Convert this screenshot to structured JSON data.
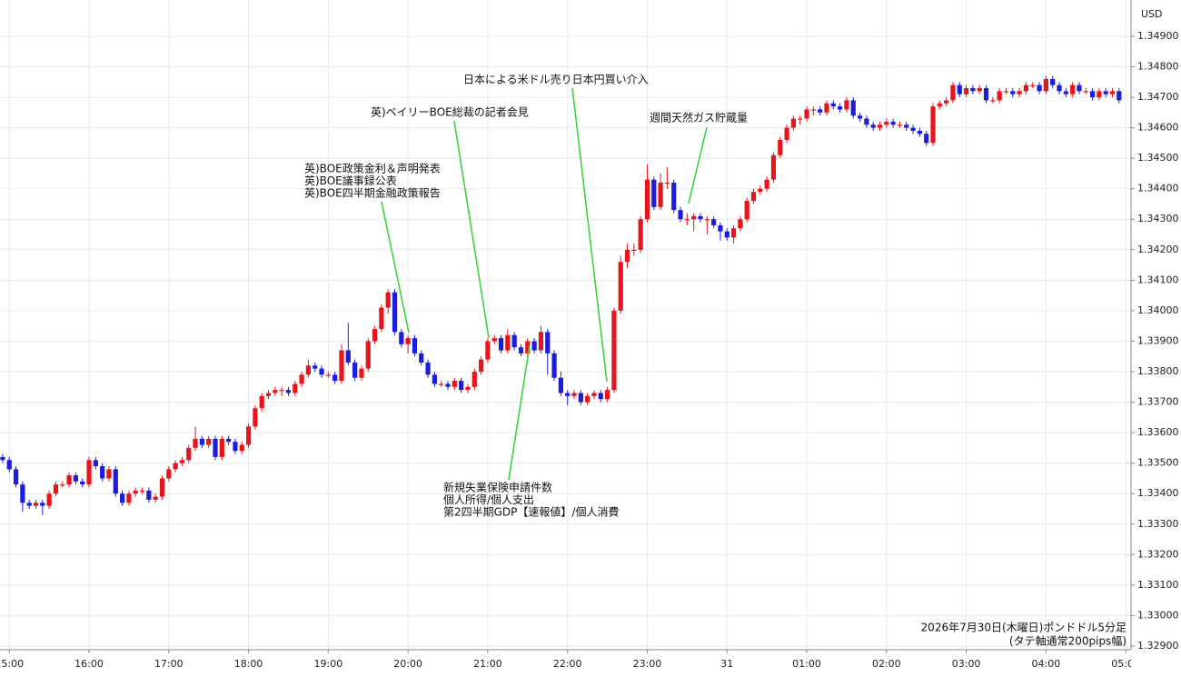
{
  "chart_data": {
    "type": "candlestick",
    "currency_label": "USD",
    "up_color": "#e8141b",
    "down_color": "#1c1ce0",
    "grid": true,
    "ylim": [
      1.32888,
      1.35019
    ],
    "yticks": [
      {
        "value": 1.349,
        "label": "1.34900"
      },
      {
        "value": 1.348,
        "label": "1.34800"
      },
      {
        "value": 1.347,
        "label": "1.34700"
      },
      {
        "value": 1.346,
        "label": "1.34600"
      },
      {
        "value": 1.345,
        "label": "1.34500"
      },
      {
        "value": 1.344,
        "label": "1.34400"
      },
      {
        "value": 1.343,
        "label": "1.34300"
      },
      {
        "value": 1.342,
        "label": "1.34200"
      },
      {
        "value": 1.341,
        "label": "1.34100"
      },
      {
        "value": 1.34,
        "label": "1.34000"
      },
      {
        "value": 1.339,
        "label": "1.33900"
      },
      {
        "value": 1.338,
        "label": "1.33800"
      },
      {
        "value": 1.337,
        "label": "1.33700"
      },
      {
        "value": 1.336,
        "label": "1.33600"
      },
      {
        "value": 1.335,
        "label": "1.33500"
      },
      {
        "value": 1.334,
        "label": "1.33400"
      },
      {
        "value": 1.333,
        "label": "1.33300"
      },
      {
        "value": 1.332,
        "label": "1.33200"
      },
      {
        "value": 1.331,
        "label": "1.33100"
      },
      {
        "value": 1.33,
        "label": "1.33000"
      },
      {
        "value": 1.329,
        "label": "1.32900"
      }
    ],
    "xlim": [
      -7,
      844
    ],
    "xticks": [
      {
        "value": 0,
        "label": "15:00"
      },
      {
        "value": 60,
        "label": "16:00"
      },
      {
        "value": 120,
        "label": "17:00"
      },
      {
        "value": 180,
        "label": "18:00"
      },
      {
        "value": 240,
        "label": "19:00"
      },
      {
        "value": 300,
        "label": "20:00"
      },
      {
        "value": 360,
        "label": "21:00"
      },
      {
        "value": 420,
        "label": "22:00"
      },
      {
        "value": 480,
        "label": "23:00"
      },
      {
        "value": 540,
        "label": "31"
      },
      {
        "value": 600,
        "label": "01:00"
      },
      {
        "value": 660,
        "label": "02:00"
      },
      {
        "value": 720,
        "label": "03:00"
      },
      {
        "value": 780,
        "label": "04:00"
      },
      {
        "value": 840,
        "label": "05:00"
      }
    ],
    "x": [
      -5,
      0,
      5,
      10,
      15,
      20,
      25,
      30,
      35,
      40,
      45,
      50,
      55,
      60,
      65,
      70,
      75,
      80,
      85,
      90,
      95,
      100,
      105,
      110,
      115,
      120,
      125,
      130,
      135,
      140,
      145,
      150,
      155,
      160,
      165,
      170,
      175,
      180,
      185,
      190,
      195,
      200,
      205,
      210,
      215,
      220,
      225,
      230,
      235,
      240,
      245,
      250,
      255,
      260,
      265,
      270,
      275,
      280,
      285,
      290,
      295,
      300,
      305,
      310,
      315,
      320,
      325,
      330,
      335,
      340,
      345,
      350,
      355,
      360,
      365,
      370,
      375,
      380,
      385,
      390,
      395,
      400,
      405,
      410,
      415,
      420,
      425,
      430,
      435,
      440,
      445,
      450,
      455,
      460,
      465,
      470,
      475,
      480,
      485,
      490,
      495,
      500,
      505,
      510,
      515,
      520,
      525,
      530,
      535,
      540,
      545,
      550,
      555,
      560,
      565,
      570,
      575,
      580,
      585,
      590,
      595,
      600,
      605,
      610,
      615,
      620,
      625,
      630,
      635,
      640,
      645,
      650,
      655,
      660,
      665,
      670,
      675,
      680,
      685,
      690,
      695,
      700,
      705,
      710,
      715,
      720,
      725,
      730,
      735,
      740,
      745,
      750,
      755,
      760,
      765,
      770,
      775,
      780,
      785,
      790,
      795,
      800,
      805,
      810,
      815,
      820,
      825,
      830,
      835
    ],
    "open": [
      1.3352,
      1.3351,
      1.3348,
      1.3343,
      1.3337,
      1.3336,
      1.3337,
      1.3336,
      1.334,
      1.3343,
      1.3343,
      1.3346,
      1.3344,
      1.3343,
      1.3351,
      1.3349,
      1.3345,
      1.3348,
      1.334,
      1.3337,
      1.334,
      1.3341,
      1.3341,
      1.3338,
      1.3339,
      1.3345,
      1.3348,
      1.335,
      1.3351,
      1.3355,
      1.3358,
      1.3356,
      1.3358,
      1.3352,
      1.3358,
      1.3357,
      1.3354,
      1.3356,
      1.3362,
      1.3368,
      1.3372,
      1.3373,
      1.3374,
      1.3374,
      1.3373,
      1.3376,
      1.3379,
      1.3382,
      1.3381,
      1.3379,
      1.3379,
      1.3377,
      1.3387,
      1.3383,
      1.3378,
      1.3381,
      1.339,
      1.3394,
      1.3401,
      1.3406,
      1.3393,
      1.3389,
      1.3391,
      1.3386,
      1.3383,
      1.3379,
      1.3376,
      1.3376,
      1.3375,
      1.3377,
      1.3374,
      1.3375,
      1.338,
      1.3384,
      1.339,
      1.3391,
      1.3387,
      1.3392,
      1.3388,
      1.3386,
      1.339,
      1.3387,
      1.3393,
      1.3386,
      1.3378,
      1.3373,
      1.3372,
      1.3373,
      1.337,
      1.3372,
      1.3373,
      1.3371,
      1.3374,
      1.34,
      1.3416,
      1.342,
      1.342,
      1.343,
      1.3443,
      1.3434,
      1.3442,
      1.3442,
      1.3433,
      1.343,
      1.343,
      1.3431,
      1.343,
      1.343,
      1.3428,
      1.3426,
      1.3424,
      1.3427,
      1.343,
      1.3436,
      1.3439,
      1.344,
      1.3443,
      1.3451,
      1.3456,
      1.346,
      1.3463,
      1.3463,
      1.3466,
      1.3466,
      1.3465,
      1.3468,
      1.3467,
      1.3466,
      1.3469,
      1.3464,
      1.3463,
      1.3461,
      1.346,
      1.3461,
      1.3462,
      1.3461,
      1.3461,
      1.346,
      1.3459,
      1.3458,
      1.3455,
      1.3467,
      1.3468,
      1.3469,
      1.3474,
      1.3471,
      1.3473,
      1.3472,
      1.3473,
      1.3469,
      1.3469,
      1.3472,
      1.3472,
      1.3471,
      1.3472,
      1.3474,
      1.3474,
      1.3472,
      1.3476,
      1.3474,
      1.3472,
      1.3471,
      1.3474,
      1.3472,
      1.3472,
      1.347,
      1.3472,
      1.3471,
      1.3472
    ],
    "high": [
      1.3353,
      1.3352,
      1.3349,
      1.3344,
      1.3338,
      1.3338,
      1.3338,
      1.3341,
      1.3344,
      1.3344,
      1.3347,
      1.3347,
      1.3345,
      1.3352,
      1.3352,
      1.335,
      1.3349,
      1.3349,
      1.3341,
      1.3341,
      1.3342,
      1.3342,
      1.3342,
      1.334,
      1.3346,
      1.3349,
      1.3351,
      1.3352,
      1.3356,
      1.3362,
      1.3359,
      1.3359,
      1.3359,
      1.3359,
      1.3359,
      1.3358,
      1.3357,
      1.3363,
      1.3369,
      1.3373,
      1.3374,
      1.3375,
      1.3375,
      1.3375,
      1.3377,
      1.338,
      1.3384,
      1.3383,
      1.3382,
      1.338,
      1.338,
      1.3389,
      1.3396,
      1.3384,
      1.3382,
      1.3391,
      1.3395,
      1.3402,
      1.3407,
      1.3407,
      1.3394,
      1.3392,
      1.3392,
      1.3387,
      1.3384,
      1.338,
      1.3377,
      1.3377,
      1.3378,
      1.3378,
      1.3376,
      1.3381,
      1.3385,
      1.3391,
      1.3392,
      1.3392,
      1.3394,
      1.3393,
      1.3389,
      1.3391,
      1.3391,
      1.3395,
      1.3394,
      1.3387,
      1.338,
      1.3374,
      1.3374,
      1.3374,
      1.3373,
      1.3374,
      1.3374,
      1.3375,
      1.3401,
      1.3418,
      1.3422,
      1.3422,
      1.3431,
      1.3448,
      1.3444,
      1.3445,
      1.3447,
      1.3443,
      1.3434,
      1.3432,
      1.3432,
      1.3432,
      1.3431,
      1.3431,
      1.3429,
      1.3427,
      1.3428,
      1.3431,
      1.3437,
      1.344,
      1.3441,
      1.3444,
      1.3452,
      1.3457,
      1.3461,
      1.3464,
      1.3464,
      1.3467,
      1.3467,
      1.3467,
      1.3469,
      1.3469,
      1.3468,
      1.347,
      1.347,
      1.3465,
      1.3464,
      1.3462,
      1.3462,
      1.3463,
      1.3463,
      1.3462,
      1.3462,
      1.3461,
      1.346,
      1.3459,
      1.3468,
      1.3469,
      1.347,
      1.3475,
      1.3475,
      1.3474,
      1.3474,
      1.3474,
      1.3474,
      1.347,
      1.3473,
      1.3473,
      1.3473,
      1.3473,
      1.3475,
      1.3475,
      1.3475,
      1.3477,
      1.3477,
      1.3475,
      1.3473,
      1.3475,
      1.3475,
      1.3473,
      1.3473,
      1.3473,
      1.3473,
      1.3473,
      1.3473
    ],
    "low": [
      1.335,
      1.3347,
      1.3342,
      1.3334,
      1.3335,
      1.3335,
      1.3333,
      1.3335,
      1.3339,
      1.3342,
      1.3342,
      1.3343,
      1.3342,
      1.3342,
      1.3348,
      1.3344,
      1.3344,
      1.3339,
      1.3336,
      1.3336,
      1.3339,
      1.334,
      1.3337,
      1.3337,
      1.3338,
      1.3344,
      1.3347,
      1.3349,
      1.335,
      1.3354,
      1.3355,
      1.3355,
      1.3351,
      1.3351,
      1.3356,
      1.3353,
      1.3353,
      1.3355,
      1.3361,
      1.3367,
      1.3371,
      1.3372,
      1.3372,
      1.3372,
      1.3372,
      1.3375,
      1.3378,
      1.338,
      1.3378,
      1.3378,
      1.3376,
      1.3376,
      1.3382,
      1.3377,
      1.3377,
      1.338,
      1.3389,
      1.3393,
      1.3399,
      1.3392,
      1.3388,
      1.3386,
      1.3385,
      1.3382,
      1.3378,
      1.3375,
      1.3375,
      1.3374,
      1.3374,
      1.3373,
      1.3373,
      1.3374,
      1.3379,
      1.3383,
      1.3389,
      1.3386,
      1.3386,
      1.3387,
      1.3385,
      1.3385,
      1.3386,
      1.3386,
      1.3379,
      1.3377,
      1.3372,
      1.3369,
      1.3371,
      1.3369,
      1.3369,
      1.3371,
      1.337,
      1.337,
      1.3373,
      1.3399,
      1.3414,
      1.3418,
      1.3419,
      1.3429,
      1.3433,
      1.3433,
      1.344,
      1.3432,
      1.3429,
      1.3428,
      1.3426,
      1.3429,
      1.3425,
      1.3427,
      1.3423,
      1.3423,
      1.3422,
      1.3426,
      1.3429,
      1.3435,
      1.3438,
      1.3439,
      1.3442,
      1.345,
      1.3455,
      1.3459,
      1.3461,
      1.3462,
      1.3464,
      1.3464,
      1.3464,
      1.3466,
      1.3465,
      1.3465,
      1.3463,
      1.3462,
      1.346,
      1.3459,
      1.3459,
      1.346,
      1.346,
      1.346,
      1.3459,
      1.3458,
      1.3457,
      1.3454,
      1.3454,
      1.3466,
      1.3467,
      1.3468,
      1.347,
      1.347,
      1.3471,
      1.3471,
      1.3468,
      1.3468,
      1.3468,
      1.3471,
      1.347,
      1.347,
      1.3471,
      1.3473,
      1.3471,
      1.3471,
      1.3473,
      1.3471,
      1.347,
      1.347,
      1.3471,
      1.3471,
      1.3469,
      1.3469,
      1.347,
      1.347,
      1.3468
    ],
    "close": [
      1.3351,
      1.3348,
      1.3343,
      1.3337,
      1.3336,
      1.3337,
      1.3336,
      1.334,
      1.3343,
      1.3343,
      1.3346,
      1.3344,
      1.3343,
      1.3351,
      1.3349,
      1.3345,
      1.3348,
      1.334,
      1.3337,
      1.334,
      1.3341,
      1.3341,
      1.3338,
      1.3339,
      1.3345,
      1.3348,
      1.335,
      1.3351,
      1.3355,
      1.3358,
      1.3356,
      1.3358,
      1.3352,
      1.3358,
      1.3357,
      1.3354,
      1.3356,
      1.3362,
      1.3368,
      1.3372,
      1.3373,
      1.3374,
      1.3374,
      1.3373,
      1.3376,
      1.3379,
      1.3382,
      1.3381,
      1.3379,
      1.3379,
      1.3377,
      1.3387,
      1.3383,
      1.3378,
      1.3381,
      1.339,
      1.3394,
      1.3401,
      1.3406,
      1.3393,
      1.3389,
      1.3391,
      1.3386,
      1.3383,
      1.3379,
      1.3376,
      1.3376,
      1.3375,
      1.3377,
      1.3374,
      1.3375,
      1.338,
      1.3384,
      1.339,
      1.3391,
      1.3387,
      1.3392,
      1.3388,
      1.3386,
      1.339,
      1.3387,
      1.3393,
      1.3386,
      1.3378,
      1.3373,
      1.3372,
      1.3373,
      1.337,
      1.3372,
      1.3373,
      1.3371,
      1.3374,
      1.34,
      1.3416,
      1.342,
      1.342,
      1.343,
      1.3443,
      1.3434,
      1.3442,
      1.3442,
      1.3433,
      1.343,
      1.343,
      1.3431,
      1.343,
      1.343,
      1.3428,
      1.3426,
      1.3424,
      1.3427,
      1.343,
      1.3436,
      1.3439,
      1.344,
      1.3443,
      1.3451,
      1.3456,
      1.346,
      1.3463,
      1.3463,
      1.3466,
      1.3466,
      1.3465,
      1.3468,
      1.3467,
      1.3466,
      1.3469,
      1.3464,
      1.3463,
      1.3461,
      1.346,
      1.3461,
      1.3462,
      1.3461,
      1.3461,
      1.346,
      1.3459,
      1.3458,
      1.3455,
      1.3467,
      1.3468,
      1.3469,
      1.3474,
      1.3471,
      1.3473,
      1.3472,
      1.3473,
      1.3469,
      1.3469,
      1.3472,
      1.3472,
      1.3471,
      1.3472,
      1.3474,
      1.3474,
      1.3472,
      1.3476,
      1.3474,
      1.3472,
      1.3471,
      1.3474,
      1.3472,
      1.3472,
      1.347,
      1.3472,
      1.3471,
      1.3472,
      1.3469
    ],
    "annotations": [
      {
        "lines": [
          "英)BOE政策金利＆声明発表",
          "英)BOE議事録公表",
          "英)BOE四半期金融政策報告"
        ]
      },
      {
        "lines": [
          "英)ベイリーBOE総裁の記者会見"
        ]
      },
      {
        "lines": [
          "日本による米ドル売り日本円買い介入"
        ]
      },
      {
        "lines": [
          "週間天然ガス貯蔵量"
        ]
      },
      {
        "lines": [
          "新規失業保険申請件数",
          "個人所得/個人支出",
          "第2四半期GDP【速報値】/個人消費"
        ]
      }
    ],
    "footnote": [
      "2026年7月30日(木曜日)ポンドドル5分足",
      "(タテ軸通常200pips幅)"
    ]
  }
}
